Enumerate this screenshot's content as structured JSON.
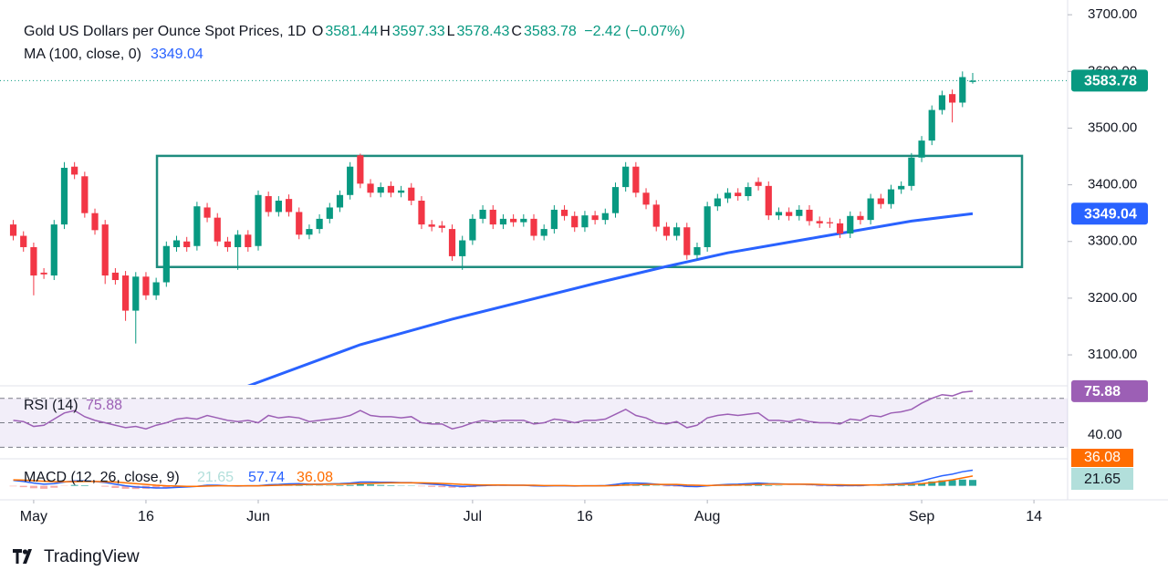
{
  "header": {
    "title": "Gold US Dollars per Ounce Spot Prices, 1D",
    "ohlc_keys": [
      "O",
      "H",
      "L",
      "C"
    ],
    "change": "−2.42 (−0.07%)",
    "brand": "TradingView"
  },
  "chart_data": [
    {
      "type": "candlestick",
      "x": [
        -2,
        -1,
        0,
        1,
        2,
        3,
        4,
        5,
        6,
        7,
        8,
        9,
        10,
        11,
        12,
        13,
        14,
        15,
        16,
        17,
        18,
        19,
        20,
        21,
        22,
        23,
        24,
        25,
        26,
        27,
        28,
        29,
        30,
        31,
        32,
        33,
        34,
        35,
        36,
        37,
        38,
        39,
        40,
        41,
        42,
        43,
        44,
        45,
        46,
        47,
        48,
        49,
        50,
        51,
        52,
        53,
        54,
        55,
        56,
        57,
        58,
        59,
        60,
        61,
        62,
        63,
        64,
        65,
        66,
        67,
        68,
        69,
        70,
        71,
        72,
        73,
        74,
        75,
        76,
        77,
        78,
        79,
        80,
        81,
        82,
        83,
        84,
        85,
        86,
        87,
        88,
        89,
        90,
        91,
        92
      ],
      "open": [
        3330,
        3310,
        3290,
        3245,
        3240,
        3330,
        3432,
        3415,
        3350,
        3330,
        3245,
        3240,
        3178,
        3238,
        3205,
        3228,
        3290,
        3300,
        3292,
        3360,
        3342,
        3300,
        3290,
        3312,
        3292,
        3380,
        3352,
        3375,
        3352,
        3312,
        3322,
        3340,
        3360,
        3382,
        3452,
        3402,
        3386,
        3398,
        3386,
        3395,
        3372,
        3330,
        3328,
        3322,
        3274,
        3302,
        3340,
        3356,
        3330,
        3340,
        3334,
        3340,
        3310,
        3322,
        3356,
        3345,
        3325,
        3346,
        3338,
        3350,
        3396,
        3432,
        3386,
        3365,
        3326,
        3310,
        3325,
        3276,
        3290,
        3362,
        3376,
        3386,
        3380,
        3405,
        3398,
        3346,
        3352,
        3345,
        3356,
        3336,
        3334,
        3332,
        3314,
        3345,
        3338,
        3376,
        3366,
        3392,
        3398,
        3448,
        3478,
        3532,
        3560,
        3545,
        3581.44
      ],
      "high": [
        3338,
        3318,
        3298,
        3253,
        3338,
        3440,
        3440,
        3423,
        3358,
        3338,
        3253,
        3248,
        3246,
        3246,
        3236,
        3300,
        3310,
        3308,
        3370,
        3368,
        3350,
        3308,
        3320,
        3320,
        3390,
        3388,
        3380,
        3383,
        3360,
        3330,
        3348,
        3368,
        3390,
        3440,
        3455,
        3410,
        3404,
        3406,
        3398,
        3403,
        3380,
        3338,
        3336,
        3330,
        3310,
        3348,
        3364,
        3364,
        3348,
        3348,
        3348,
        3348,
        3330,
        3364,
        3364,
        3353,
        3354,
        3354,
        3358,
        3404,
        3440,
        3440,
        3394,
        3373,
        3334,
        3333,
        3333,
        3298,
        3370,
        3384,
        3394,
        3394,
        3404,
        3413,
        3406,
        3360,
        3360,
        3364,
        3364,
        3344,
        3342,
        3340,
        3353,
        3353,
        3384,
        3384,
        3400,
        3406,
        3456,
        3486,
        3540,
        3566,
        3568,
        3600,
        3597.33
      ],
      "low": [
        3302,
        3282,
        3205,
        3234,
        3232,
        3322,
        3410,
        3342,
        3312,
        3225,
        3224,
        3160,
        3120,
        3197,
        3197,
        3220,
        3282,
        3282,
        3284,
        3334,
        3292,
        3282,
        3250,
        3282,
        3284,
        3344,
        3344,
        3344,
        3304,
        3304,
        3314,
        3332,
        3352,
        3374,
        3394,
        3378,
        3378,
        3378,
        3378,
        3364,
        3322,
        3318,
        3316,
        3266,
        3250,
        3294,
        3332,
        3322,
        3322,
        3326,
        3326,
        3302,
        3302,
        3314,
        3337,
        3317,
        3317,
        3330,
        3330,
        3342,
        3388,
        3378,
        3357,
        3318,
        3302,
        3302,
        3268,
        3268,
        3282,
        3354,
        3368,
        3372,
        3372,
        3390,
        3338,
        3338,
        3337,
        3337,
        3328,
        3324,
        3324,
        3306,
        3306,
        3330,
        3330,
        3358,
        3358,
        3384,
        3390,
        3440,
        3470,
        3524,
        3510,
        3537,
        3578.43
      ],
      "close": [
        3310,
        3290,
        3240,
        3242,
        3330,
        3430,
        3418,
        3350,
        3320,
        3240,
        3232,
        3178,
        3238,
        3205,
        3228,
        3292,
        3302,
        3290,
        3362,
        3342,
        3300,
        3290,
        3312,
        3290,
        3382,
        3352,
        3372,
        3352,
        3312,
        3322,
        3340,
        3360,
        3382,
        3432,
        3402,
        3386,
        3396,
        3386,
        3390,
        3372,
        3330,
        3326,
        3324,
        3274,
        3302,
        3340,
        3356,
        3330,
        3340,
        3334,
        3340,
        3310,
        3322,
        3356,
        3345,
        3325,
        3346,
        3338,
        3350,
        3396,
        3432,
        3386,
        3365,
        3326,
        3310,
        3325,
        3276,
        3290,
        3362,
        3376,
        3386,
        3380,
        3396,
        3398,
        3346,
        3352,
        3345,
        3356,
        3336,
        3332,
        3332,
        3314,
        3345,
        3338,
        3376,
        3366,
        3392,
        3398,
        3448,
        3478,
        3532,
        3558,
        3545,
        3590,
        3583.78
      ],
      "up_color": "#089981",
      "down_color": "#f23645",
      "xlim": [
        -3.3,
        101.3
      ],
      "ylim": [
        3047,
        3726
      ],
      "yticks": [
        {
          "value": 3100,
          "label": "3100.00"
        },
        {
          "value": 3200,
          "label": "3200.00"
        },
        {
          "value": 3300,
          "label": "3300.00"
        },
        {
          "value": 3400,
          "label": "3400.00"
        },
        {
          "value": 3500,
          "label": "3500.00"
        },
        {
          "value": 3600,
          "label": "3600.00"
        },
        {
          "value": 3700,
          "label": "3700.00"
        }
      ],
      "xticks": [
        {
          "value": 0,
          "label": "May"
        },
        {
          "value": 11,
          "label": "16"
        },
        {
          "value": 22,
          "label": "Jun"
        },
        {
          "value": 43,
          "label": "Jul"
        },
        {
          "value": 54,
          "label": "16"
        },
        {
          "value": 66,
          "label": "Aug"
        },
        {
          "value": 87,
          "label": "Sep"
        },
        {
          "value": 98,
          "label": "14"
        }
      ],
      "ma": {
        "name": "MA (100, close, 0)",
        "color": "#2962ff",
        "x": [
          21,
          32,
          41,
          55,
          62,
          68,
          77,
          86,
          92
        ],
        "values": [
          3045,
          3118,
          3163,
          3226,
          3256,
          3280,
          3308,
          3336,
          3349.04
        ]
      },
      "box": {
        "x": [
          12.08,
          96.83
        ],
        "y": [
          3255,
          3451
        ],
        "color": "#1e8c7e"
      }
    },
    {
      "type": "line",
      "title": "RSI (14)",
      "color": "#9c5fb5",
      "values": [
        52,
        51,
        47,
        48,
        53,
        58,
        60,
        55,
        52,
        50,
        48,
        46,
        47,
        45,
        48,
        50,
        53,
        54,
        53,
        56,
        54,
        52,
        51,
        52,
        50,
        56,
        54,
        55,
        54,
        51,
        52,
        53,
        54,
        56,
        60,
        56,
        55,
        55,
        54,
        55,
        50,
        49,
        49,
        45,
        47,
        50,
        52,
        51,
        52,
        52,
        52,
        49,
        50,
        53,
        52,
        50,
        52,
        52,
        53,
        57,
        61,
        56,
        54,
        50,
        49,
        51,
        46,
        48,
        54,
        56,
        57,
        56,
        57,
        58,
        52,
        52,
        51,
        53,
        51,
        50,
        50,
        49,
        53,
        52,
        56,
        55,
        58,
        59,
        61,
        66,
        70,
        73,
        72,
        75,
        75.88
      ],
      "ylim": [
        21.3,
        79.5
      ],
      "yticks": [
        {
          "value": 40,
          "label": "40.00"
        }
      ],
      "levels": [
        70,
        50,
        30
      ]
    },
    {
      "type": "macd",
      "title": "MACD (12, 26, close, 9)",
      "macd": {
        "color": "#2962ff",
        "values": [
          20,
          16,
          10,
          6,
          8,
          14,
          18,
          18,
          16,
          12,
          6,
          0,
          -4,
          -6,
          -8,
          -8,
          -6,
          -4,
          -2,
          2,
          2,
          0,
          -1,
          0,
          0,
          4,
          5,
          7,
          8,
          6,
          6,
          7,
          8,
          10,
          14,
          14,
          13,
          13,
          12,
          12,
          9,
          6,
          4,
          0,
          -2,
          -1,
          1,
          2,
          2,
          2,
          2,
          0,
          -1,
          0,
          0,
          -1,
          0,
          0,
          1,
          5,
          10,
          10,
          9,
          6,
          3,
          2,
          -2,
          -3,
          0,
          3,
          5,
          6,
          8,
          10,
          8,
          7,
          6,
          6,
          5,
          3,
          2,
          1,
          1,
          1,
          3,
          4,
          6,
          8,
          11,
          18,
          28,
          37,
          43,
          52,
          57.74
        ]
      },
      "signal": {
        "color": "#ff6d00",
        "values": [
          22,
          21,
          19,
          17,
          15,
          15,
          15,
          16,
          16,
          15,
          14,
          11,
          8,
          5,
          2,
          0,
          -1,
          -2,
          -2,
          -1,
          0,
          0,
          0,
          0,
          0,
          1,
          2,
          3,
          4,
          5,
          5,
          6,
          6,
          7,
          8,
          9,
          10,
          11,
          11,
          11,
          11,
          10,
          9,
          7,
          5,
          4,
          3,
          3,
          3,
          2,
          2,
          2,
          1,
          1,
          1,
          0,
          0,
          0,
          0,
          1,
          3,
          4,
          5,
          5,
          5,
          5,
          3,
          2,
          1,
          2,
          2,
          3,
          4,
          5,
          6,
          6,
          6,
          6,
          6,
          5,
          4,
          4,
          3,
          3,
          3,
          3,
          4,
          5,
          6,
          8,
          12,
          17,
          22,
          29,
          36.08
        ]
      },
      "histogram": {
        "up_color": "#26a69a",
        "down_color": "#f7a9a7",
        "values": [
          -2,
          -5,
          -9,
          -11,
          -7,
          -1,
          3,
          2,
          0,
          -3,
          -8,
          -11,
          -12,
          -11,
          -10,
          -8,
          -5,
          -2,
          0,
          3,
          2,
          0,
          -1,
          0,
          0,
          3,
          3,
          4,
          4,
          1,
          1,
          1,
          2,
          3,
          6,
          5,
          3,
          2,
          1,
          1,
          -2,
          -4,
          -5,
          -7,
          -7,
          -5,
          -2,
          -1,
          -1,
          0,
          0,
          -2,
          -2,
          -1,
          -1,
          -1,
          0,
          0,
          1,
          4,
          7,
          6,
          4,
          1,
          -2,
          -3,
          -5,
          -5,
          -1,
          1,
          3,
          3,
          4,
          5,
          2,
          1,
          0,
          0,
          -1,
          -2,
          -2,
          -3,
          -2,
          -2,
          0,
          1,
          2,
          3,
          5,
          10,
          16,
          20,
          21,
          23,
          21.65
        ]
      },
      "ylim": [
        -45,
        93
      ]
    }
  ]
}
